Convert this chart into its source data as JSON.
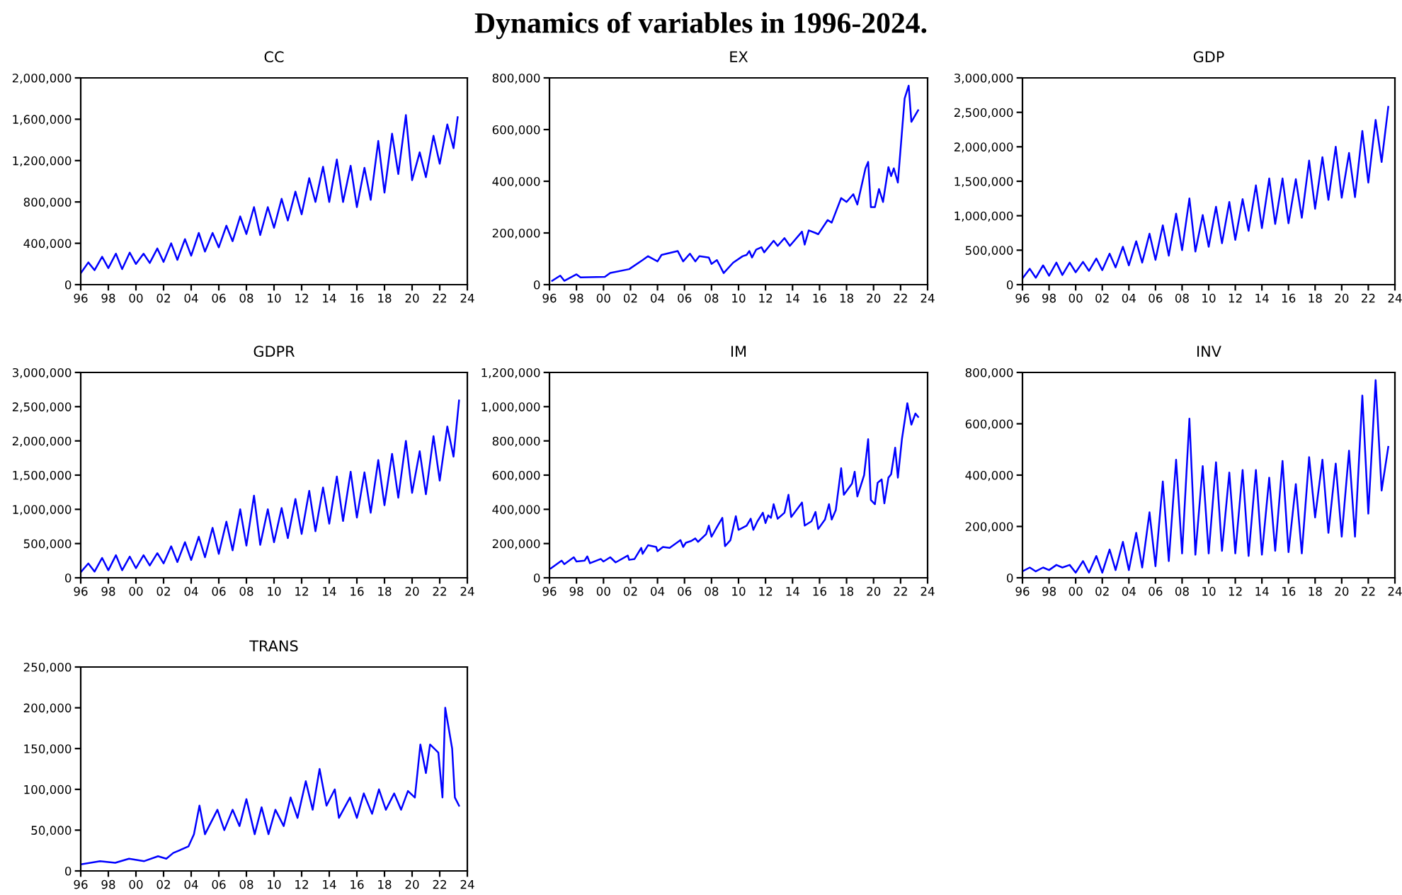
{
  "chart_data": [
    {
      "type": "line",
      "title": "CC",
      "annotations": [
        "Dynamics of variables in 1996-2024."
      ],
      "color": "#0000ff",
      "xlim": [
        1996,
        2024
      ],
      "ylim": [
        0,
        2000000
      ],
      "xticks": [
        {
          "value": 1996,
          "label": "96"
        },
        {
          "value": 1998,
          "label": "98"
        },
        {
          "value": 2000,
          "label": "00"
        },
        {
          "value": 2002,
          "label": "02"
        },
        {
          "value": 2004,
          "label": "04"
        },
        {
          "value": 2006,
          "label": "06"
        },
        {
          "value": 2008,
          "label": "08"
        },
        {
          "value": 2010,
          "label": "10"
        },
        {
          "value": 2012,
          "label": "12"
        },
        {
          "value": 2014,
          "label": "14"
        },
        {
          "value": 2016,
          "label": "16"
        },
        {
          "value": 2018,
          "label": "18"
        },
        {
          "value": 2020,
          "label": "20"
        },
        {
          "value": 2022,
          "label": "22"
        },
        {
          "value": 2024,
          "label": "24"
        }
      ],
      "yticks": [
        0,
        {
          "value": 400000,
          "label": "400,000"
        },
        {
          "value": 800000,
          "label": "800,000"
        },
        {
          "value": 1200000,
          "label": "1,200,000"
        },
        {
          "value": 1600000,
          "label": "1,600,000"
        },
        {
          "value": 2000000,
          "label": "2,000,000"
        }
      ],
      "x": [
        1996,
        1996.55,
        1997,
        1997.55,
        1998,
        1998.55,
        1999,
        1999.55,
        2000,
        2000.55,
        2001,
        2001.55,
        2002,
        2002.55,
        2003,
        2003.55,
        2004,
        2004.55,
        2005,
        2005.55,
        2006,
        2006.55,
        2007,
        2007.55,
        2008,
        2008.55,
        2009,
        2009.55,
        2010,
        2010.55,
        2011,
        2011.55,
        2012,
        2012.55,
        2013,
        2013.55,
        2014,
        2014.55,
        2015,
        2015.55,
        2016,
        2016.55,
        2017,
        2017.55,
        2018,
        2018.55,
        2019,
        2019.55,
        2020,
        2020.55,
        2021,
        2021.55,
        2022,
        2022.55,
        2023,
        2023.3
      ],
      "values": [
        110000,
        215000,
        140000,
        270000,
        160000,
        300000,
        150000,
        310000,
        200000,
        300000,
        210000,
        350000,
        220000,
        400000,
        240000,
        440000,
        280000,
        500000,
        320000,
        500000,
        360000,
        570000,
        420000,
        660000,
        490000,
        750000,
        480000,
        750000,
        550000,
        830000,
        620000,
        900000,
        680000,
        1030000,
        800000,
        1140000,
        800000,
        1210000,
        800000,
        1150000,
        750000,
        1130000,
        820000,
        1390000,
        890000,
        1460000,
        1070000,
        1640000,
        1010000,
        1280000,
        1040000,
        1440000,
        1170000,
        1550000,
        1320000,
        1620000
      ]
    },
    {
      "type": "line",
      "title": "EX",
      "color": "#0000ff",
      "xlim": [
        1996,
        2024
      ],
      "ylim": [
        0,
        800000
      ],
      "xticks": [
        {
          "value": 1996,
          "label": "96"
        },
        {
          "value": 1998,
          "label": "98"
        },
        {
          "value": 2000,
          "label": "00"
        },
        {
          "value": 2002,
          "label": "02"
        },
        {
          "value": 2004,
          "label": "04"
        },
        {
          "value": 2006,
          "label": "06"
        },
        {
          "value": 2008,
          "label": "08"
        },
        {
          "value": 2010,
          "label": "10"
        },
        {
          "value": 2012,
          "label": "12"
        },
        {
          "value": 2014,
          "label": "14"
        },
        {
          "value": 2016,
          "label": "16"
        },
        {
          "value": 2018,
          "label": "18"
        },
        {
          "value": 2020,
          "label": "20"
        },
        {
          "value": 2022,
          "label": "22"
        },
        {
          "value": 2024,
          "label": "24"
        }
      ],
      "yticks": [
        0,
        {
          "value": 200000,
          "label": "200,000"
        },
        {
          "value": 400000,
          "label": "400,000"
        },
        {
          "value": 600000,
          "label": "600,000"
        },
        {
          "value": 800000,
          "label": "800,000"
        }
      ],
      "x": [
        1996.2,
        1996.8,
        1997.1,
        1998.0,
        1998.3,
        2000.1,
        2000.5,
        2001.9,
        2002.9,
        2003.3,
        2004.0,
        2004.3,
        2005.5,
        2005.9,
        2006.4,
        2006.8,
        2007.1,
        2007.8,
        2008.0,
        2008.4,
        2008.9,
        2009.6,
        2010.3,
        2010.6,
        2010.8,
        2011.0,
        2011.3,
        2011.7,
        2011.9,
        2012.6,
        2012.9,
        2013.4,
        2013.8,
        2014.7,
        2014.9,
        2015.2,
        2015.7,
        2015.9,
        2016.6,
        2016.9,
        2017.6,
        2018.0,
        2018.5,
        2018.8,
        2019.4,
        2019.6,
        2019.8,
        2020.1,
        2020.4,
        2020.7,
        2021.1,
        2021.3,
        2021.5,
        2021.8,
        2022.3,
        2022.6,
        2022.8,
        2023.3
      ],
      "values": [
        15000,
        35000,
        15000,
        40000,
        28000,
        30000,
        45000,
        60000,
        95000,
        110000,
        90000,
        115000,
        130000,
        90000,
        120000,
        90000,
        110000,
        105000,
        80000,
        95000,
        45000,
        85000,
        110000,
        115000,
        130000,
        105000,
        135000,
        145000,
        125000,
        170000,
        150000,
        180000,
        150000,
        205000,
        155000,
        210000,
        200000,
        195000,
        250000,
        240000,
        335000,
        320000,
        350000,
        310000,
        450000,
        475000,
        300000,
        300000,
        370000,
        320000,
        455000,
        420000,
        450000,
        395000,
        720000,
        770000,
        630000,
        675000
      ]
    },
    {
      "type": "line",
      "title": "GDP",
      "color": "#0000ff",
      "xlim": [
        1996,
        2024
      ],
      "ylim": [
        0,
        3000000
      ],
      "xticks": [
        {
          "value": 1996,
          "label": "96"
        },
        {
          "value": 1998,
          "label": "98"
        },
        {
          "value": 2000,
          "label": "00"
        },
        {
          "value": 2002,
          "label": "02"
        },
        {
          "value": 2004,
          "label": "04"
        },
        {
          "value": 2006,
          "label": "06"
        },
        {
          "value": 2008,
          "label": "08"
        },
        {
          "value": 2010,
          "label": "10"
        },
        {
          "value": 2012,
          "label": "12"
        },
        {
          "value": 2014,
          "label": "14"
        },
        {
          "value": 2016,
          "label": "16"
        },
        {
          "value": 2018,
          "label": "18"
        },
        {
          "value": 2020,
          "label": "20"
        },
        {
          "value": 2022,
          "label": "22"
        },
        {
          "value": 2024,
          "label": "24"
        }
      ],
      "yticks": [
        0,
        {
          "value": 500000,
          "label": "500,000"
        },
        {
          "value": 1000000,
          "label": "1,000,000"
        },
        {
          "value": 1500000,
          "label": "1,500,000"
        },
        {
          "value": 2000000,
          "label": "2,000,000"
        },
        {
          "value": 2500000,
          "label": "2,500,000"
        },
        {
          "value": 3000000,
          "label": "3,000,000"
        }
      ],
      "x": [
        1996,
        1996.55,
        1997,
        1997.55,
        1998,
        1998.55,
        1999,
        1999.55,
        2000,
        2000.55,
        2001,
        2001.55,
        2002,
        2002.55,
        2003,
        2003.55,
        2004,
        2004.55,
        2005,
        2005.55,
        2006,
        2006.55,
        2007,
        2007.55,
        2008,
        2008.55,
        2009,
        2009.55,
        2010,
        2010.55,
        2011,
        2011.55,
        2012,
        2012.55,
        2013,
        2013.55,
        2014,
        2014.55,
        2015,
        2015.55,
        2016,
        2016.55,
        2017,
        2017.55,
        2018,
        2018.55,
        2019,
        2019.55,
        2020,
        2020.55,
        2021,
        2021.55,
        2022,
        2022.55,
        2023,
        2023.5
      ],
      "values": [
        90000,
        230000,
        100000,
        280000,
        130000,
        320000,
        140000,
        320000,
        180000,
        330000,
        200000,
        380000,
        210000,
        450000,
        250000,
        550000,
        280000,
        630000,
        320000,
        740000,
        360000,
        860000,
        420000,
        1030000,
        500000,
        1250000,
        480000,
        1010000,
        550000,
        1130000,
        600000,
        1200000,
        650000,
        1240000,
        780000,
        1440000,
        820000,
        1540000,
        880000,
        1540000,
        890000,
        1530000,
        970000,
        1800000,
        1100000,
        1850000,
        1230000,
        2000000,
        1260000,
        1910000,
        1270000,
        2230000,
        1480000,
        2390000,
        1780000,
        2580000
      ]
    },
    {
      "type": "line",
      "title": "GDPR",
      "color": "#0000ff",
      "xlim": [
        1996,
        2024
      ],
      "ylim": [
        0,
        3000000
      ],
      "xticks": [
        {
          "value": 1996,
          "label": "96"
        },
        {
          "value": 1998,
          "label": "98"
        },
        {
          "value": 2000,
          "label": "00"
        },
        {
          "value": 2002,
          "label": "02"
        },
        {
          "value": 2004,
          "label": "04"
        },
        {
          "value": 2006,
          "label": "06"
        },
        {
          "value": 2008,
          "label": "08"
        },
        {
          "value": 2010,
          "label": "10"
        },
        {
          "value": 2012,
          "label": "12"
        },
        {
          "value": 2014,
          "label": "14"
        },
        {
          "value": 2016,
          "label": "16"
        },
        {
          "value": 2018,
          "label": "18"
        },
        {
          "value": 2020,
          "label": "20"
        },
        {
          "value": 2022,
          "label": "22"
        },
        {
          "value": 2024,
          "label": "24"
        }
      ],
      "yticks": [
        0,
        {
          "value": 500000,
          "label": "500,000"
        },
        {
          "value": 1000000,
          "label": "1,000,000"
        },
        {
          "value": 1500000,
          "label": "1,500,000"
        },
        {
          "value": 2000000,
          "label": "2,000,000"
        },
        {
          "value": 2500000,
          "label": "2,500,000"
        },
        {
          "value": 3000000,
          "label": "3,000,000"
        }
      ],
      "x": [
        1996,
        1996.55,
        1997,
        1997.55,
        1998,
        1998.55,
        1999,
        1999.55,
        2000,
        2000.55,
        2001,
        2001.55,
        2002,
        2002.55,
        2003,
        2003.55,
        2004,
        2004.55,
        2005,
        2005.55,
        2006,
        2006.55,
        2007,
        2007.55,
        2008,
        2008.55,
        2009,
        2009.55,
        2010,
        2010.55,
        2011,
        2011.55,
        2012,
        2012.55,
        2013,
        2013.55,
        2014,
        2014.55,
        2015,
        2015.55,
        2016,
        2016.55,
        2017,
        2017.55,
        2018,
        2018.55,
        2019,
        2019.55,
        2020,
        2020.55,
        2021,
        2021.55,
        2022,
        2022.55,
        2023,
        2023.4
      ],
      "values": [
        80000,
        210000,
        90000,
        290000,
        110000,
        330000,
        110000,
        310000,
        140000,
        330000,
        180000,
        360000,
        210000,
        460000,
        230000,
        520000,
        260000,
        600000,
        300000,
        730000,
        350000,
        820000,
        400000,
        1000000,
        470000,
        1200000,
        480000,
        1000000,
        520000,
        1020000,
        580000,
        1150000,
        640000,
        1270000,
        680000,
        1320000,
        790000,
        1480000,
        830000,
        1550000,
        880000,
        1540000,
        950000,
        1720000,
        1060000,
        1810000,
        1170000,
        2000000,
        1240000,
        1850000,
        1220000,
        2070000,
        1420000,
        2210000,
        1770000,
        2590000
      ]
    },
    {
      "type": "line",
      "title": "IM",
      "color": "#0000ff",
      "xlim": [
        1996,
        2024
      ],
      "ylim": [
        0,
        1200000
      ],
      "xticks": [
        {
          "value": 1996,
          "label": "96"
        },
        {
          "value": 1998,
          "label": "98"
        },
        {
          "value": 2000,
          "label": "00"
        },
        {
          "value": 2002,
          "label": "02"
        },
        {
          "value": 2004,
          "label": "04"
        },
        {
          "value": 2006,
          "label": "06"
        },
        {
          "value": 2008,
          "label": "08"
        },
        {
          "value": 2010,
          "label": "10"
        },
        {
          "value": 2012,
          "label": "12"
        },
        {
          "value": 2014,
          "label": "14"
        },
        {
          "value": 2016,
          "label": "16"
        },
        {
          "value": 2018,
          "label": "18"
        },
        {
          "value": 2020,
          "label": "20"
        },
        {
          "value": 2022,
          "label": "22"
        },
        {
          "value": 2024,
          "label": "24"
        }
      ],
      "yticks": [
        0,
        {
          "value": 200000,
          "label": "200,000"
        },
        {
          "value": 400000,
          "label": "400,000"
        },
        {
          "value": 600000,
          "label": "600,000"
        },
        {
          "value": 800000,
          "label": "800,000"
        },
        {
          "value": 1000000,
          "label": "1,000,000"
        },
        {
          "value": 1200000,
          "label": "1,200,000"
        }
      ],
      "x": [
        1996.1,
        1996.9,
        1997.1,
        1997.8,
        1998.0,
        1998.6,
        1998.8,
        1999.0,
        1999.8,
        2000.0,
        2000.5,
        2000.9,
        2001.8,
        2001.9,
        2002.3,
        2002.8,
        2002.9,
        2003.3,
        2003.9,
        2004.0,
        2004.4,
        2004.9,
        2005.7,
        2005.9,
        2006.1,
        2006.5,
        2006.8,
        2007.0,
        2007.6,
        2007.8,
        2008.0,
        2008.5,
        2008.8,
        2009.0,
        2009.4,
        2009.8,
        2010.0,
        2010.6,
        2010.9,
        2011.1,
        2011.4,
        2011.8,
        2012.0,
        2012.2,
        2012.4,
        2012.6,
        2012.9,
        2013.4,
        2013.7,
        2013.9,
        2014.7,
        2014.9,
        2015.4,
        2015.7,
        2015.9,
        2016.4,
        2016.7,
        2016.9,
        2017.2,
        2017.6,
        2017.8,
        2018.4,
        2018.6,
        2018.8,
        2019.3,
        2019.6,
        2019.8,
        2020.1,
        2020.3,
        2020.6,
        2020.8,
        2021.1,
        2021.3,
        2021.6,
        2021.8,
        2022.1,
        2022.5,
        2022.8,
        2023.1,
        2023.3
      ],
      "values": [
        55000,
        100000,
        80000,
        120000,
        95000,
        100000,
        125000,
        85000,
        110000,
        95000,
        120000,
        90000,
        130000,
        105000,
        110000,
        175000,
        140000,
        190000,
        180000,
        155000,
        180000,
        175000,
        220000,
        180000,
        205000,
        215000,
        230000,
        210000,
        255000,
        305000,
        240000,
        310000,
        350000,
        185000,
        220000,
        360000,
        280000,
        305000,
        345000,
        280000,
        330000,
        380000,
        320000,
        365000,
        350000,
        430000,
        345000,
        380000,
        485000,
        355000,
        440000,
        305000,
        330000,
        385000,
        285000,
        340000,
        430000,
        340000,
        395000,
        640000,
        485000,
        550000,
        620000,
        475000,
        600000,
        810000,
        455000,
        430000,
        555000,
        575000,
        435000,
        585000,
        605000,
        760000,
        585000,
        810000,
        1020000,
        895000,
        960000,
        940000
      ]
    },
    {
      "type": "line",
      "title": "INV",
      "color": "#0000ff",
      "xlim": [
        1996,
        2024
      ],
      "ylim": [
        0,
        800000
      ],
      "xticks": [
        {
          "value": 1996,
          "label": "96"
        },
        {
          "value": 1998,
          "label": "98"
        },
        {
          "value": 2000,
          "label": "00"
        },
        {
          "value": 2002,
          "label": "02"
        },
        {
          "value": 2004,
          "label": "04"
        },
        {
          "value": 2006,
          "label": "06"
        },
        {
          "value": 2008,
          "label": "08"
        },
        {
          "value": 2010,
          "label": "10"
        },
        {
          "value": 2012,
          "label": "12"
        },
        {
          "value": 2014,
          "label": "14"
        },
        {
          "value": 2016,
          "label": "16"
        },
        {
          "value": 2018,
          "label": "18"
        },
        {
          "value": 2020,
          "label": "20"
        },
        {
          "value": 2022,
          "label": "22"
        },
        {
          "value": 2024,
          "label": "24"
        }
      ],
      "yticks": [
        0,
        {
          "value": 200000,
          "label": "200,000"
        },
        {
          "value": 400000,
          "label": "400,000"
        },
        {
          "value": 600000,
          "label": "600,000"
        },
        {
          "value": 800000,
          "label": "800,000"
        }
      ],
      "x": [
        1996,
        1996.55,
        1997,
        1997.55,
        1998,
        1998.55,
        1999,
        1999.55,
        2000,
        2000.55,
        2001,
        2001.55,
        2002,
        2002.55,
        2003,
        2003.55,
        2004,
        2004.55,
        2005,
        2005.55,
        2006,
        2006.55,
        2007,
        2007.55,
        2008,
        2008.55,
        2009,
        2009.55,
        2010,
        2010.55,
        2011,
        2011.55,
        2012,
        2012.55,
        2013,
        2013.55,
        2014,
        2014.55,
        2015,
        2015.55,
        2016,
        2016.55,
        2017,
        2017.55,
        2018,
        2018.55,
        2019,
        2019.55,
        2020,
        2020.55,
        2021,
        2021.55,
        2022,
        2022.55,
        2023,
        2023.5
      ],
      "values": [
        25000,
        40000,
        25000,
        40000,
        30000,
        50000,
        40000,
        50000,
        20000,
        65000,
        20000,
        85000,
        20000,
        110000,
        30000,
        140000,
        30000,
        175000,
        40000,
        255000,
        45000,
        375000,
        65000,
        460000,
        95000,
        620000,
        90000,
        435000,
        95000,
        450000,
        105000,
        410000,
        95000,
        420000,
        85000,
        420000,
        90000,
        390000,
        105000,
        455000,
        100000,
        365000,
        95000,
        470000,
        235000,
        460000,
        175000,
        445000,
        160000,
        495000,
        160000,
        710000,
        250000,
        770000,
        340000,
        510000
      ]
    },
    {
      "type": "line",
      "title": "TRANS",
      "color": "#0000ff",
      "xlim": [
        1996,
        2024
      ],
      "ylim": [
        0,
        250000
      ],
      "xticks": [
        {
          "value": 1996,
          "label": "96"
        },
        {
          "value": 1998,
          "label": "98"
        },
        {
          "value": 2000,
          "label": "00"
        },
        {
          "value": 2002,
          "label": "02"
        },
        {
          "value": 2004,
          "label": "04"
        },
        {
          "value": 2006,
          "label": "06"
        },
        {
          "value": 2008,
          "label": "08"
        },
        {
          "value": 2010,
          "label": "10"
        },
        {
          "value": 2012,
          "label": "12"
        },
        {
          "value": 2014,
          "label": "14"
        },
        {
          "value": 2016,
          "label": "16"
        },
        {
          "value": 2018,
          "label": "18"
        },
        {
          "value": 2020,
          "label": "20"
        },
        {
          "value": 2022,
          "label": "22"
        },
        {
          "value": 2024,
          "label": "24"
        }
      ],
      "yticks": [
        0,
        {
          "value": 50000,
          "label": "50,000"
        },
        {
          "value": 100000,
          "label": "100,000"
        },
        {
          "value": 150000,
          "label": "150,000"
        },
        {
          "value": 200000,
          "label": "200,000"
        },
        {
          "value": 250000,
          "label": "250,000"
        }
      ],
      "x": [
        1996,
        1997.4,
        1998.5,
        1999.5,
        2000.6,
        2001.6,
        2002.2,
        2002.7,
        2003.8,
        2004.2,
        2004.6,
        2005.0,
        2005.9,
        2006.4,
        2007.0,
        2007.5,
        2008.0,
        2008.6,
        2009.1,
        2009.6,
        2010.1,
        2010.7,
        2011.2,
        2011.7,
        2012.3,
        2012.8,
        2013.3,
        2013.8,
        2014.4,
        2014.7,
        2015.5,
        2016.0,
        2016.5,
        2017.1,
        2017.6,
        2018.1,
        2018.7,
        2019.2,
        2019.7,
        2020.2,
        2020.6,
        2021.0,
        2021.3,
        2021.9,
        2022.2,
        2022.4,
        2022.9,
        2023.1,
        2023.4
      ],
      "values": [
        8000,
        12000,
        10000,
        15000,
        12000,
        18000,
        15000,
        22000,
        30000,
        45000,
        80000,
        45000,
        75000,
        50000,
        75000,
        55000,
        88000,
        45000,
        78000,
        45000,
        75000,
        55000,
        90000,
        65000,
        110000,
        75000,
        125000,
        80000,
        100000,
        65000,
        90000,
        65000,
        95000,
        70000,
        100000,
        75000,
        95000,
        75000,
        98000,
        90000,
        155000,
        120000,
        155000,
        145000,
        90000,
        200000,
        150000,
        90000,
        80000
      ]
    }
  ]
}
